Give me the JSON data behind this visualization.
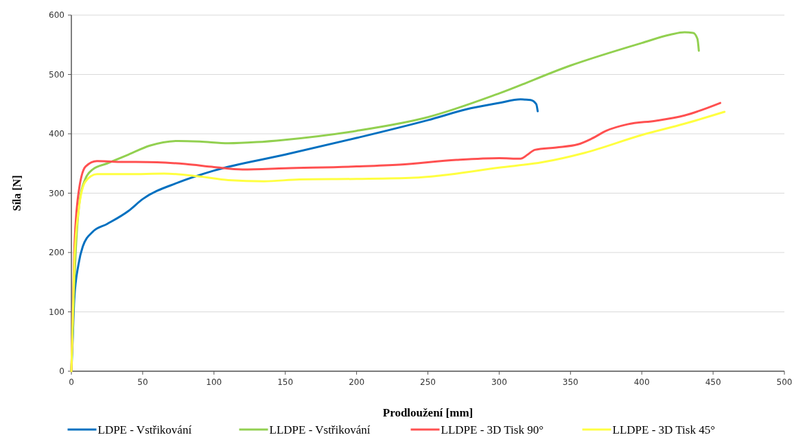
{
  "chart_data": {
    "type": "line",
    "xlabel": "Prodloužení  [mm]",
    "ylabel": "Síla  [N]",
    "xlim": [
      0,
      500
    ],
    "xticks": [
      0,
      50,
      100,
      150,
      200,
      250,
      300,
      350,
      400,
      450,
      500
    ],
    "ylim": [
      0,
      600
    ],
    "yticks": [
      0,
      100,
      200,
      300,
      400,
      500,
      600
    ],
    "grid": "y",
    "legend": "bottom",
    "marker": "none",
    "line_style": "solid",
    "series": [
      {
        "name": "LDPE - Vstřikování",
        "color": "#0070c0",
        "x": [
          0,
          1,
          2,
          5,
          8,
          15,
          25,
          40,
          50,
          75,
          100,
          150,
          200,
          250,
          280,
          300,
          315,
          322,
          326,
          327
        ],
        "values": [
          0,
          60,
          120,
          180,
          210,
          235,
          248,
          270,
          290,
          318,
          338,
          365,
          393,
          423,
          443,
          452,
          458,
          457,
          450,
          438
        ]
      },
      {
        "name": "LLDPE - Vstřikování",
        "color": "#92d050",
        "x": [
          0,
          3,
          6,
          10,
          15,
          25,
          40,
          55,
          75,
          90,
          110,
          130,
          150,
          200,
          250,
          300,
          350,
          400,
          420,
          430,
          436,
          439,
          440
        ],
        "values": [
          0,
          200,
          290,
          325,
          340,
          350,
          365,
          380,
          388,
          387,
          384,
          386,
          390,
          405,
          428,
          468,
          515,
          553,
          567,
          571,
          570,
          560,
          540
        ]
      },
      {
        "name": "LLDPE - 3D Tisk 90°",
        "color": "#ff5050",
        "x": [
          0,
          2,
          5,
          10,
          18,
          30,
          60,
          80,
          100,
          120,
          150,
          200,
          230,
          270,
          300,
          315,
          320,
          325,
          340,
          355,
          365,
          375,
          390,
          410,
          430,
          455
        ],
        "values": [
          0,
          200,
          300,
          345,
          354,
          353,
          352,
          349,
          344,
          340,
          342,
          345,
          348,
          356,
          359,
          358,
          365,
          373,
          377,
          382,
          392,
          405,
          416,
          422,
          431,
          452
        ]
      },
      {
        "name": "LLDPE - 3D Tisk 45°",
        "color": "#ffff40",
        "x": [
          0,
          2,
          5,
          10,
          18,
          40,
          65,
          90,
          110,
          135,
          160,
          200,
          240,
          260,
          300,
          330,
          360,
          400,
          430,
          458
        ],
        "values": [
          0,
          180,
          270,
          320,
          332,
          332,
          333,
          328,
          322,
          320,
          323,
          324,
          326,
          330,
          343,
          352,
          368,
          398,
          417,
          437
        ]
      }
    ]
  }
}
